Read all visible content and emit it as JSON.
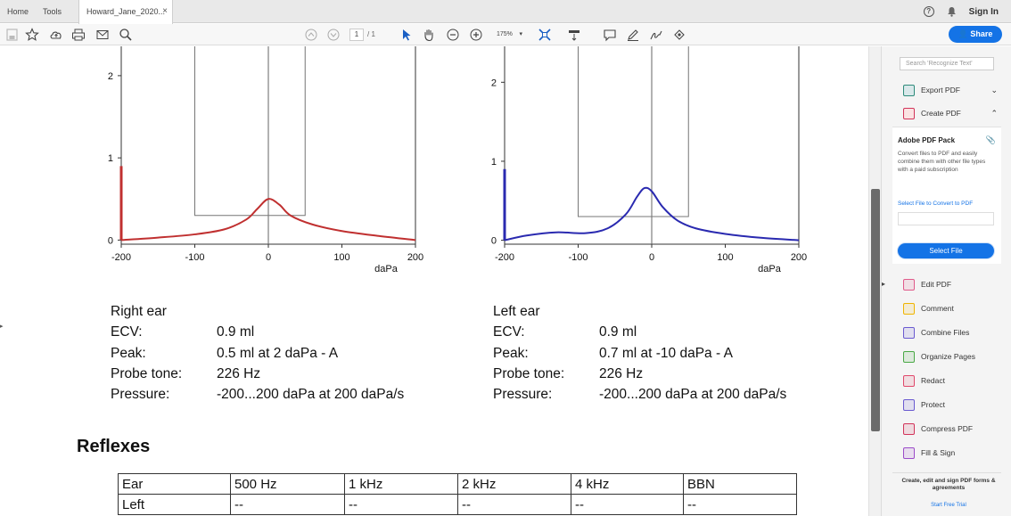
{
  "tabs": {
    "home": "Home",
    "tools": "Tools",
    "document": "Howard_Jane_2020...",
    "close": "×"
  },
  "header": {
    "sign_in": "Sign In",
    "help_icon": "help-icon",
    "bell_icon": "bell-icon"
  },
  "toolbar": {
    "page_current": "1",
    "page_total": "/ 1",
    "zoom": "175%",
    "zoom_caret": "▾",
    "share_label": "Share"
  },
  "charts": {
    "y_ticks": [
      "0",
      "1",
      "2"
    ],
    "x_ticks": [
      "-200",
      "-100",
      "0",
      "100",
      "200"
    ],
    "x_unit": "daPa"
  },
  "chart_data": [
    {
      "type": "line",
      "name": "Right ear tympanogram",
      "xlabel": "daPa",
      "xlim": [
        -200,
        200
      ],
      "ylim": [
        -0.05,
        2.4
      ],
      "color": "#c03030",
      "box": {
        "x0": -100,
        "x1": 50,
        "y0": 0.3,
        "y_top": 2.4
      },
      "series": [
        {
          "x": [
            -200,
            -150,
            -100,
            -60,
            -30,
            -15,
            0,
            15,
            30,
            60,
            100,
            150,
            200
          ],
          "y": [
            0.0,
            0.03,
            0.07,
            0.13,
            0.25,
            0.38,
            0.5,
            0.43,
            0.3,
            0.19,
            0.11,
            0.05,
            0.0
          ]
        }
      ],
      "probe_bar": {
        "x": -200,
        "y0": 0,
        "y1": 0.9
      }
    },
    {
      "type": "line",
      "name": "Left ear tympanogram",
      "xlabel": "daPa",
      "xlim": [
        -200,
        200
      ],
      "ylim": [
        -0.05,
        2.5
      ],
      "color": "#2a2ab0",
      "box": {
        "x0": -100,
        "x1": 50,
        "y0": 0.3,
        "y_top": 2.5
      },
      "series": [
        {
          "x": [
            -200,
            -170,
            -130,
            -90,
            -60,
            -35,
            -20,
            -10,
            0,
            15,
            35,
            60,
            100,
            150,
            200
          ],
          "y": [
            0.0,
            0.06,
            0.1,
            0.09,
            0.15,
            0.33,
            0.55,
            0.66,
            0.62,
            0.42,
            0.25,
            0.15,
            0.08,
            0.03,
            0.0
          ]
        }
      ],
      "probe_bar": {
        "x": -200,
        "y0": 0,
        "y1": 0.9
      }
    }
  ],
  "right_ear": {
    "title": "Right ear",
    "rows": [
      {
        "key": "ECV:",
        "value": "0.9 ml"
      },
      {
        "key": "Peak:",
        "value": "0.5 ml at 2 daPa  -  A"
      },
      {
        "key": "Probe tone:",
        "value": "226 Hz"
      },
      {
        "key": "Pressure:",
        "value": "-200...200 daPa at 200 daPa/s"
      }
    ]
  },
  "left_ear": {
    "title": "Left ear",
    "rows": [
      {
        "key": "ECV:",
        "value": "0.9 ml"
      },
      {
        "key": "Peak:",
        "value": "0.7 ml at -10 daPa  -  A"
      },
      {
        "key": "Probe tone:",
        "value": "226 Hz"
      },
      {
        "key": "Pressure:",
        "value": "-200...200 daPa at 200 daPa/s"
      }
    ]
  },
  "reflexes": {
    "title": "Reflexes",
    "headers": [
      "Ear",
      "500 Hz",
      "1 kHz",
      "2 kHz",
      "4 kHz",
      "BBN"
    ],
    "rows": [
      [
        "Left",
        "--",
        "--",
        "--",
        "--",
        "--"
      ]
    ]
  },
  "panel": {
    "search_placeholder": "Search 'Recognize Text'",
    "export_pdf": "Export PDF",
    "create_pdf": "Create PDF",
    "pack_title": "Adobe PDF Pack",
    "pack_desc": "Convert files to PDF and easily combine them with other file types with a paid subscription",
    "select_label": "Select File to Convert to PDF",
    "select_button": "Select File",
    "tools": [
      "Edit PDF",
      "Comment",
      "Combine Files",
      "Organize Pages",
      "Redact",
      "Protect",
      "Compress PDF",
      "Fill & Sign"
    ],
    "tool_colors": [
      "#e05a8a",
      "#f0b400",
      "#6a5ad0",
      "#49a845",
      "#e0486b",
      "#6a5ad0",
      "#d2345a",
      "#9b4bc9"
    ],
    "footer": "Create, edit and sign PDF forms & agreements",
    "footer_link": "Start Free Trial"
  }
}
